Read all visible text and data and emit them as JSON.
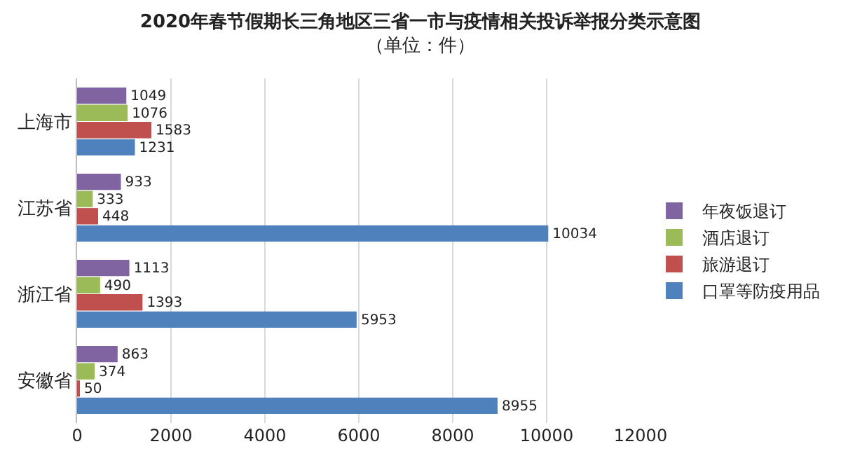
{
  "chart_data": {
    "type": "bar",
    "orientation": "horizontal",
    "title": "2020年春节假期长三角地区三省一市与疫情相关投诉举报分类示意图",
    "subtitle": "（单位：件）",
    "categories": [
      "上海市",
      "江苏省",
      "浙江省",
      "安徽省"
    ],
    "series": [
      {
        "name": "年夜饭退订",
        "color": "#8064a2",
        "values": [
          1049,
          933,
          1113,
          863
        ]
      },
      {
        "name": "酒店退订",
        "color": "#9bbb59",
        "values": [
          1076,
          333,
          490,
          374
        ]
      },
      {
        "name": "旅游退订",
        "color": "#c0504d",
        "values": [
          1583,
          448,
          1393,
          50
        ]
      },
      {
        "name": "口罩等防疫用品",
        "color": "#4f81bd",
        "values": [
          1231,
          10034,
          5953,
          8955
        ]
      }
    ],
    "xlim": [
      0,
      12000
    ],
    "xticks": [
      0,
      2000,
      4000,
      6000,
      8000,
      10000,
      12000
    ],
    "grid": "x",
    "legend": "right",
    "data_labels": true
  }
}
